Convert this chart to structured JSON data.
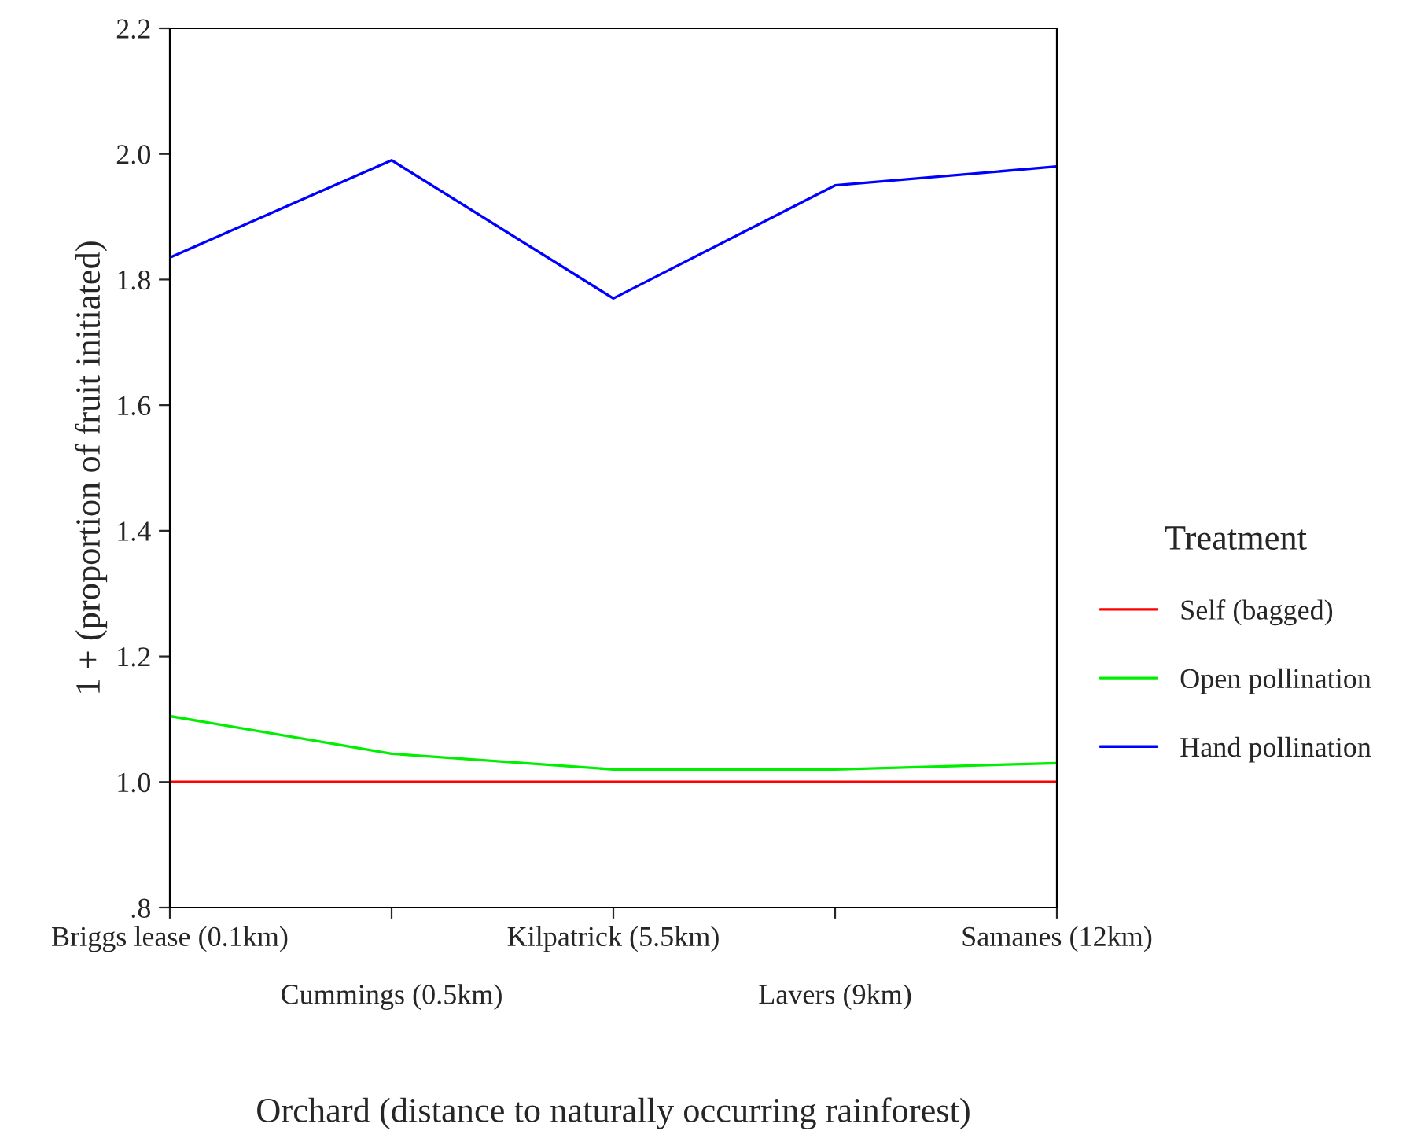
{
  "chart_data": {
    "type": "line",
    "xlabel": "Orchard (distance to naturally occurring rainforest)",
    "ylabel": "1 + (proportion of fruit initiated)",
    "legend_title": "Treatment",
    "categories": [
      "Briggs lease (0.1km)",
      "Cummings (0.5km)",
      "Kilpatrick (5.5km)",
      "Lavers (9km)",
      "Samanes (12km)"
    ],
    "series": [
      {
        "name": "Self (bagged)",
        "color": "#ff0000",
        "values": [
          1.0,
          1.0,
          1.0,
          1.0,
          1.0
        ]
      },
      {
        "name": "Open pollination",
        "color": "#00ee00",
        "values": [
          1.105,
          1.045,
          1.02,
          1.02,
          1.03
        ]
      },
      {
        "name": "Hand pollination",
        "color": "#0000ff",
        "values": [
          1.835,
          1.99,
          1.77,
          1.95,
          1.98
        ]
      }
    ],
    "ylim": [
      0.8,
      2.2
    ],
    "yticks": [
      {
        "value": 0.8,
        "label": ".8"
      },
      {
        "value": 1.0,
        "label": "1.0"
      },
      {
        "value": 1.2,
        "label": "1.2"
      },
      {
        "value": 1.4,
        "label": "1.4"
      },
      {
        "value": 1.6,
        "label": "1.6"
      },
      {
        "value": 1.8,
        "label": "1.8"
      },
      {
        "value": 2.0,
        "label": "2.0"
      },
      {
        "value": 2.2,
        "label": "2.2"
      }
    ],
    "grid": false,
    "legend": "right"
  }
}
